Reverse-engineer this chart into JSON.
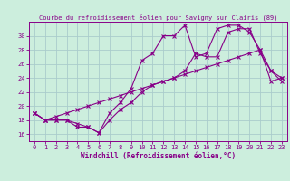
{
  "title": "Courbe du refroidissement éolien pour Savigny sur Clairis (89)",
  "xlabel": "Windchill (Refroidissement éolien,°C)",
  "background_color": "#cceedd",
  "grid_color": "#aacccc",
  "line_color": "#880088",
  "xlim": [
    -0.5,
    23.5
  ],
  "ylim": [
    15.0,
    32.0
  ],
  "yticks": [
    16,
    18,
    20,
    22,
    24,
    26,
    28,
    30
  ],
  "xticks": [
    0,
    1,
    2,
    3,
    4,
    5,
    6,
    7,
    8,
    9,
    10,
    11,
    12,
    13,
    14,
    15,
    16,
    17,
    18,
    19,
    20,
    21,
    22,
    23
  ],
  "line1_x": [
    0,
    1,
    2,
    3,
    4,
    5,
    6,
    7,
    8,
    9,
    10,
    11,
    12,
    13,
    14,
    15,
    16,
    17,
    18,
    19,
    20,
    21,
    22,
    23
  ],
  "line1_y": [
    19.0,
    18.0,
    18.0,
    18.0,
    17.0,
    17.0,
    16.2,
    18.0,
    19.5,
    20.5,
    22.0,
    23.0,
    23.5,
    24.0,
    25.0,
    27.5,
    27.0,
    27.0,
    30.5,
    31.0,
    31.0,
    27.5,
    25.0,
    24.0
  ],
  "line2_x": [
    0,
    1,
    2,
    3,
    4,
    5,
    6,
    7,
    8,
    9,
    10,
    11,
    12,
    13,
    14,
    15,
    16,
    17,
    18,
    19,
    20,
    21,
    22,
    23
  ],
  "line2_y": [
    19.0,
    18.0,
    18.5,
    19.0,
    19.5,
    20.0,
    20.5,
    21.0,
    21.5,
    22.0,
    22.5,
    23.0,
    23.5,
    24.0,
    24.5,
    25.0,
    25.5,
    26.0,
    26.5,
    27.0,
    27.5,
    28.0,
    23.5,
    24.0
  ],
  "line3_x": [
    0,
    1,
    2,
    3,
    4,
    5,
    6,
    7,
    8,
    9,
    10,
    11,
    12,
    13,
    14,
    15,
    16,
    17,
    18,
    19,
    20,
    21,
    22,
    23
  ],
  "line3_y": [
    19.0,
    18.0,
    18.0,
    18.0,
    17.5,
    17.0,
    16.2,
    19.0,
    20.5,
    22.5,
    26.5,
    27.5,
    30.0,
    30.0,
    31.5,
    27.0,
    27.5,
    31.0,
    31.5,
    31.5,
    30.5,
    28.0,
    25.0,
    23.5
  ],
  "title_fontsize": 5.0,
  "xlabel_fontsize": 5.5,
  "tick_fontsize": 5.0
}
